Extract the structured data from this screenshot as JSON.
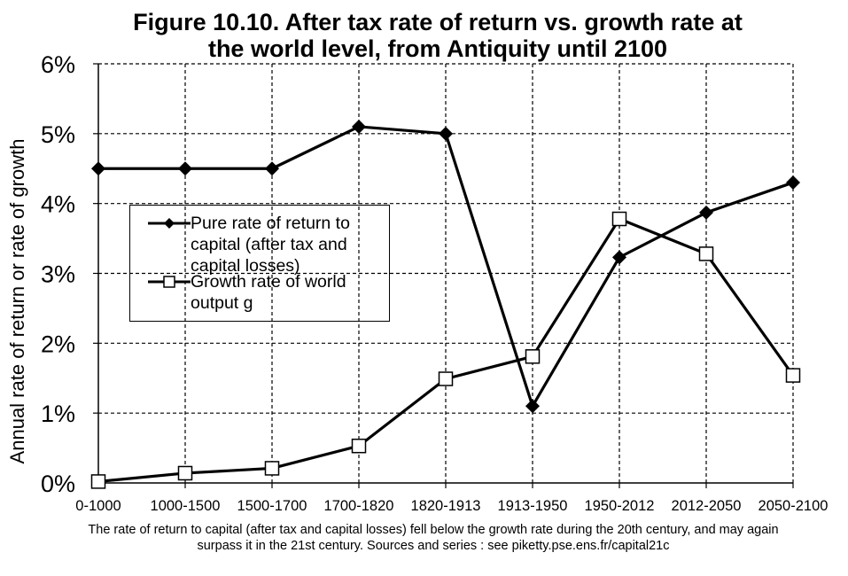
{
  "chart_data": {
    "type": "line",
    "title": [
      "Figure 10.10. After tax rate of return vs. growth rate at",
      "the world level, from Antiquity until 2100"
    ],
    "ylabel": "Annual rate of return or rate of growth",
    "xlabel": "",
    "categories": [
      "0-1000",
      "1000-1500",
      "1500-1700",
      "1700-1820",
      "1820-1913",
      "1913-1950",
      "1950-2012",
      "2012-2050",
      "2050-2100"
    ],
    "ylim": [
      0,
      6
    ],
    "y_ticks": [
      "0%",
      "1%",
      "2%",
      "3%",
      "4%",
      "5%",
      "6%"
    ],
    "grid": true,
    "legend_position": "left-middle",
    "series": [
      {
        "name": "Pure rate of return to capital (after tax and capital losses)",
        "marker": "filled-diamond",
        "values": [
          4.5,
          4.5,
          4.5,
          5.1,
          5.0,
          1.1,
          3.23,
          3.87,
          4.3
        ]
      },
      {
        "name": "Growth rate of world output g",
        "marker": "open-square",
        "values": [
          0.02,
          0.14,
          0.21,
          0.53,
          1.49,
          1.81,
          3.78,
          3.28,
          1.54
        ]
      }
    ]
  },
  "legend": {
    "items": [
      {
        "lines": [
          "Pure rate of return to",
          "capital (after tax and",
          "capital losses)"
        ]
      },
      {
        "lines": [
          "Growth rate of world",
          "output g"
        ]
      }
    ]
  },
  "caption": "The rate of return to capital (after tax and capital losses) fell below the growth rate during the 20th century, and may again surpass it in the 21st century. Sources and series : see piketty.pse.ens.fr/capital21c",
  "colors": {
    "line": "#000000",
    "grid": "#000000",
    "background": "#ffffff",
    "open_marker_fill": "#ffffff"
  }
}
